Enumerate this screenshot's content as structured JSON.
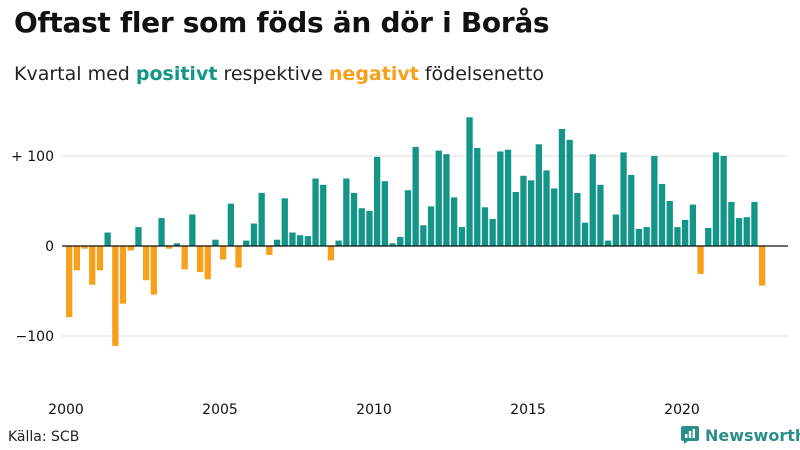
{
  "header": {
    "title": "Oftast fler som föds än dör i Borås",
    "subtitle_prefix": "Kvartal med ",
    "subtitle_pos": "positivt",
    "subtitle_mid": " respektive ",
    "subtitle_neg": "negativt",
    "subtitle_suffix": " födelsenetto"
  },
  "footer": {
    "source": "Källa: SCB",
    "brand": "Newsworthy"
  },
  "colors": {
    "positive": "#139688",
    "negative": "#f7a01b",
    "grid": "#dddddd",
    "axis": "#111111",
    "brand": "#2a8f88"
  },
  "chart_data": {
    "type": "bar",
    "title": "Oftast fler som föds än dör i Borås",
    "subtitle": "Kvartal med positivt respektive negativt födelsenetto",
    "xlabel": "",
    "ylabel": "",
    "ylim": [
      -125,
      150
    ],
    "yticks": [
      {
        "value": 100,
        "label": "+ 100"
      },
      {
        "value": 0,
        "label": "0"
      },
      {
        "value": -100,
        "label": "−100"
      }
    ],
    "xticks": [
      {
        "year": 2000,
        "label": "2000"
      },
      {
        "year": 2005,
        "label": "2005"
      },
      {
        "year": 2010,
        "label": "2010"
      },
      {
        "year": 2015,
        "label": "2015"
      },
      {
        "year": 2020,
        "label": "2020"
      }
    ],
    "grid": true,
    "start": "2000 Q1",
    "frequency": "quarterly",
    "series": [
      {
        "values": [
          -79,
          -27,
          -3,
          -43,
          -27,
          15,
          -111,
          -64,
          -5,
          21,
          -38,
          -54,
          31,
          -3,
          3,
          -26,
          35,
          -29,
          -37,
          7,
          -15,
          47,
          -24,
          6,
          25,
          59,
          -10,
          7,
          53,
          15,
          12,
          11,
          75,
          68,
          -16,
          6,
          75,
          59,
          42,
          39,
          99,
          72,
          3,
          10,
          62,
          110,
          23,
          44,
          106,
          102,
          54,
          21,
          143,
          109,
          43,
          30,
          105,
          107,
          60,
          78,
          73,
          113,
          84,
          64,
          130,
          118,
          59,
          26,
          102,
          68,
          6,
          35,
          104,
          79,
          19,
          21,
          100,
          69,
          50,
          21,
          29,
          46,
          -31,
          20,
          104,
          100,
          49,
          31,
          32,
          49,
          -44
        ]
      }
    ]
  }
}
